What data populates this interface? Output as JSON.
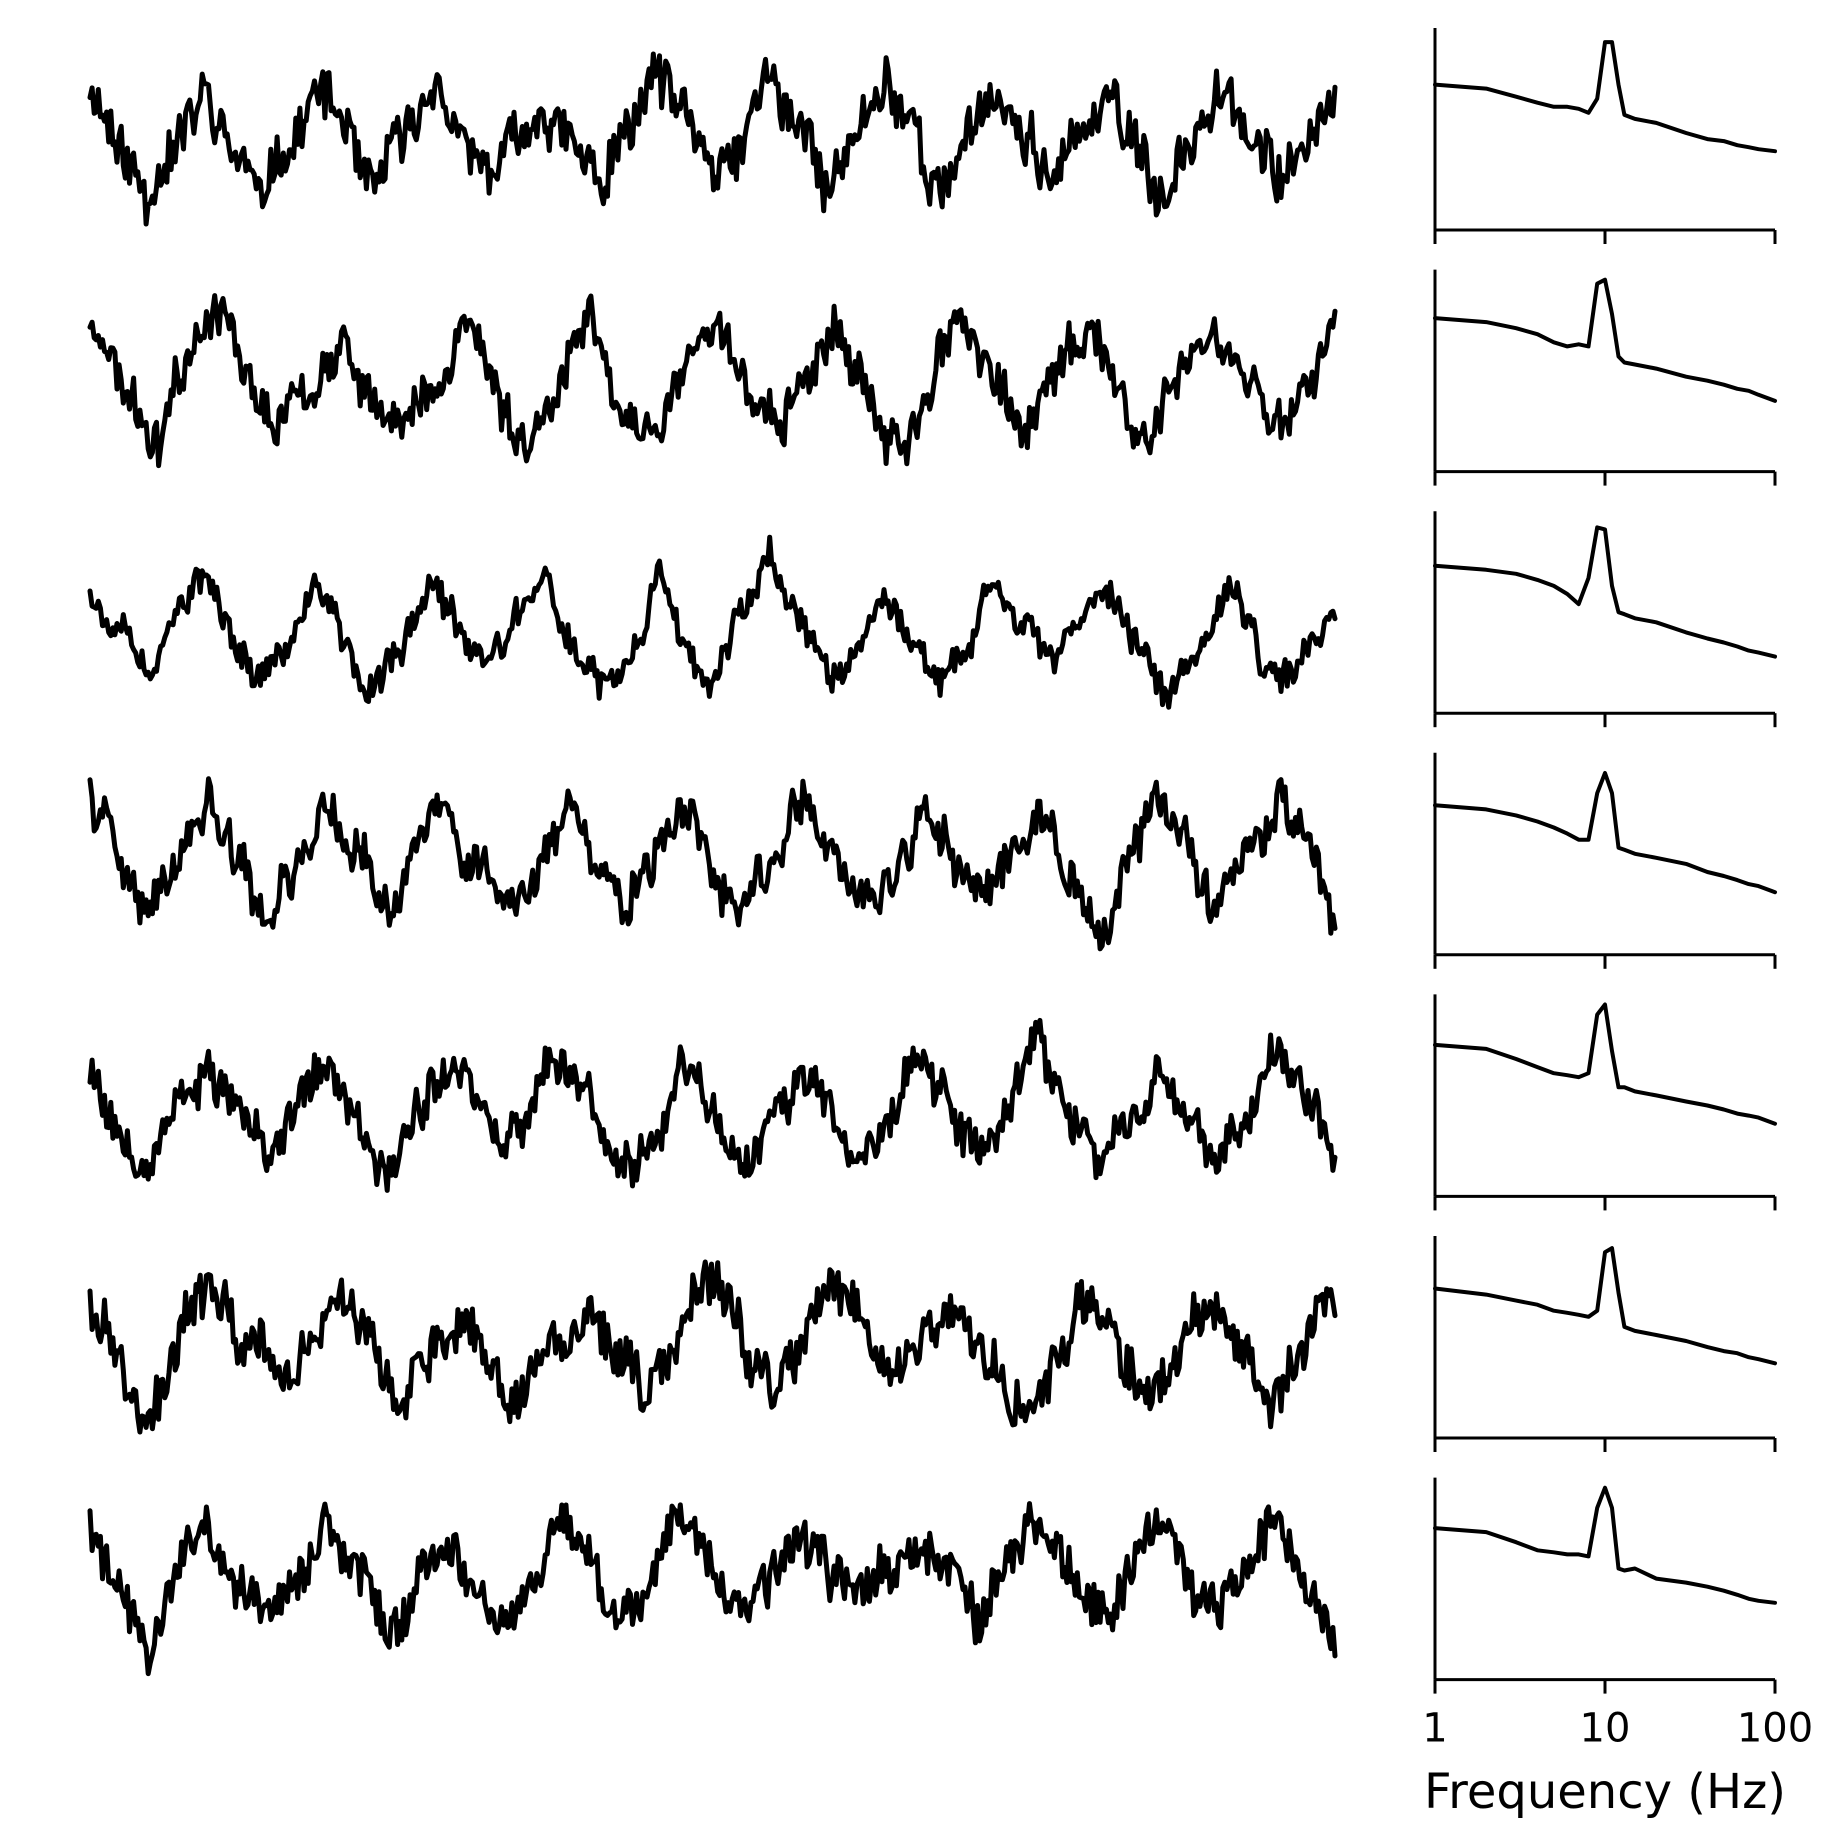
{
  "chart_data": [
    {
      "type": "line",
      "panel": "time-series",
      "title": "",
      "xlabel": "",
      "ylabel": "",
      "axes_visible": false,
      "grid": false,
      "legend": "none",
      "n_samples": 600,
      "series": [
        {
          "alpha_cycles": 11,
          "mean": 0,
          "amplitude": 1.0,
          "noise": 0.55,
          "seed": 11
        },
        {
          "alpha_cycles": 10,
          "mean": 0,
          "amplitude": 1.0,
          "noise": 0.45,
          "seed": 23
        },
        {
          "alpha_cycles": 11,
          "mean": 0,
          "amplitude": 1.0,
          "noise": 0.3,
          "seed": 37
        },
        {
          "alpha_cycles": 10.5,
          "mean": 0,
          "amplitude": 1.0,
          "noise": 0.4,
          "seed": 41
        },
        {
          "alpha_cycles": 10.5,
          "mean": 0,
          "amplitude": 1.0,
          "noise": 0.45,
          "seed": 53
        },
        {
          "alpha_cycles": 10,
          "mean": 0,
          "amplitude": 1.0,
          "noise": 0.55,
          "seed": 67
        },
        {
          "alpha_cycles": 10.5,
          "mean": 0,
          "amplitude": 1.0,
          "noise": 0.55,
          "seed": 79
        }
      ]
    },
    {
      "type": "line",
      "panel": "power-spectrum",
      "title": "",
      "xlabel": "Frequency (Hz)",
      "ylabel": "",
      "xscale": "log",
      "xlim": [
        1,
        100
      ],
      "ylim": [
        0,
        1
      ],
      "xticks": [
        1,
        10,
        100
      ],
      "xtick_labels": [
        "1",
        "10",
        "100"
      ],
      "grid": false,
      "legend": "none",
      "series": [
        {
          "x": [
            1,
            2,
            3,
            4,
            5,
            6,
            7,
            8,
            9,
            10,
            11,
            12,
            13,
            15,
            20,
            30,
            40,
            50,
            60,
            70,
            80,
            100
          ],
          "y": [
            0.72,
            0.7,
            0.66,
            0.63,
            0.61,
            0.61,
            0.6,
            0.58,
            0.65,
            0.93,
            0.93,
            0.72,
            0.57,
            0.55,
            0.53,
            0.48,
            0.45,
            0.44,
            0.42,
            0.41,
            0.4,
            0.39
          ]
        },
        {
          "x": [
            1,
            2,
            3,
            4,
            5,
            6,
            7,
            8,
            9,
            10,
            11,
            12,
            13,
            15,
            20,
            30,
            40,
            50,
            60,
            70,
            80,
            100
          ],
          "y": [
            0.76,
            0.74,
            0.71,
            0.68,
            0.64,
            0.62,
            0.63,
            0.62,
            0.93,
            0.95,
            0.78,
            0.57,
            0.54,
            0.53,
            0.51,
            0.47,
            0.45,
            0.43,
            0.41,
            0.4,
            0.38,
            0.35
          ]
        },
        {
          "x": [
            1,
            2,
            3,
            4,
            5,
            6,
            7,
            8,
            9,
            10,
            11,
            12,
            13,
            15,
            20,
            30,
            40,
            50,
            60,
            70,
            80,
            100
          ],
          "y": [
            0.73,
            0.71,
            0.69,
            0.66,
            0.63,
            0.59,
            0.54,
            0.67,
            0.92,
            0.91,
            0.63,
            0.5,
            0.49,
            0.47,
            0.45,
            0.4,
            0.37,
            0.35,
            0.33,
            0.31,
            0.3,
            0.28
          ]
        },
        {
          "x": [
            1,
            2,
            3,
            4,
            5,
            6,
            7,
            8,
            9,
            10,
            11,
            12,
            13,
            15,
            20,
            30,
            40,
            50,
            60,
            70,
            80,
            100
          ],
          "y": [
            0.74,
            0.72,
            0.69,
            0.66,
            0.63,
            0.6,
            0.57,
            0.57,
            0.8,
            0.9,
            0.8,
            0.53,
            0.52,
            0.5,
            0.48,
            0.45,
            0.41,
            0.39,
            0.37,
            0.35,
            0.34,
            0.31
          ]
        },
        {
          "x": [
            1,
            2,
            3,
            4,
            5,
            6,
            7,
            8,
            9,
            10,
            11,
            12,
            13,
            15,
            20,
            30,
            40,
            50,
            60,
            70,
            80,
            100
          ],
          "y": [
            0.75,
            0.73,
            0.68,
            0.64,
            0.61,
            0.6,
            0.59,
            0.61,
            0.9,
            0.95,
            0.72,
            0.54,
            0.54,
            0.52,
            0.5,
            0.47,
            0.45,
            0.43,
            0.41,
            0.4,
            0.39,
            0.36
          ]
        },
        {
          "x": [
            1,
            2,
            3,
            4,
            5,
            6,
            7,
            8,
            9,
            10,
            11,
            12,
            13,
            15,
            20,
            30,
            40,
            50,
            60,
            70,
            80,
            100
          ],
          "y": [
            0.74,
            0.71,
            0.68,
            0.66,
            0.63,
            0.62,
            0.61,
            0.6,
            0.63,
            0.92,
            0.94,
            0.72,
            0.55,
            0.53,
            0.51,
            0.48,
            0.45,
            0.43,
            0.42,
            0.4,
            0.39,
            0.37
          ]
        },
        {
          "x": [
            1,
            2,
            3,
            4,
            5,
            6,
            7,
            8,
            9,
            10,
            11,
            12,
            13,
            15,
            20,
            30,
            40,
            50,
            60,
            70,
            80,
            100
          ],
          "y": [
            0.75,
            0.73,
            0.68,
            0.64,
            0.63,
            0.62,
            0.62,
            0.61,
            0.85,
            0.95,
            0.85,
            0.55,
            0.54,
            0.55,
            0.5,
            0.48,
            0.46,
            0.44,
            0.42,
            0.4,
            0.39,
            0.38
          ]
        }
      ]
    }
  ],
  "style": {
    "line_color": "#000000",
    "background": "#ffffff"
  }
}
